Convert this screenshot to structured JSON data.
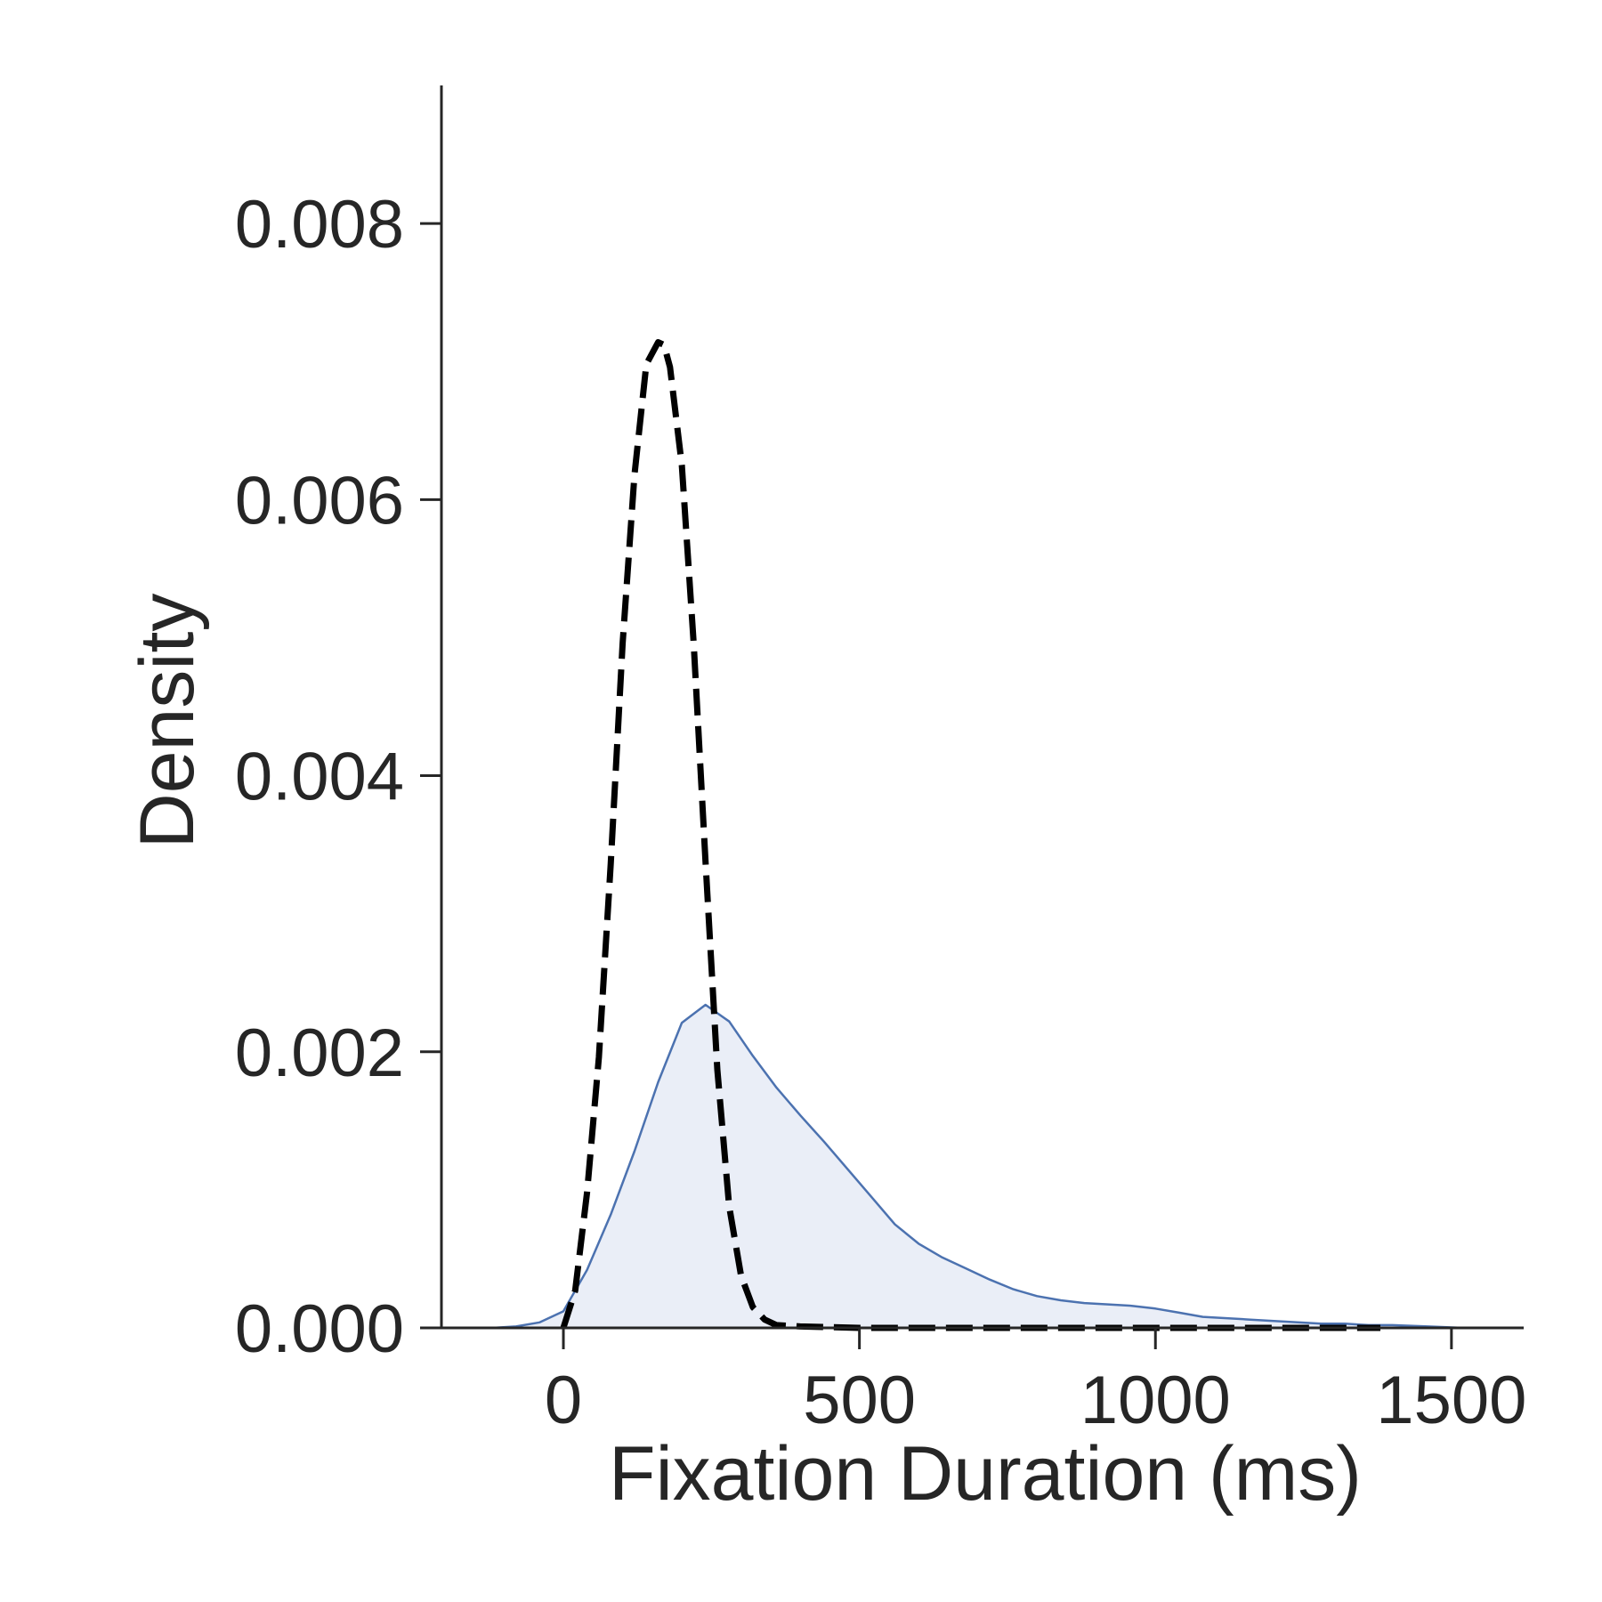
{
  "chart_data": {
    "type": "area",
    "title": "",
    "xlabel": "Fixation Duration (ms)",
    "ylabel": "Density",
    "xlim": [
      -206,
      1622
    ],
    "ylim": [
      0,
      0.009
    ],
    "xticks": [
      0,
      500,
      1000,
      1500
    ],
    "xtick_labels": [
      "0",
      "500",
      "1000",
      "1500"
    ],
    "yticks": [
      0.0,
      0.002,
      0.004,
      0.006,
      0.008
    ],
    "ytick_labels": [
      "0.000",
      "0.002",
      "0.004",
      "0.006",
      "0.008"
    ],
    "grid": false,
    "legend": "none",
    "series": [
      {
        "style": "filled-kde",
        "line_color": "#4c72b0",
        "fill_color": "#eaeef7",
        "x": [
          -120,
          -80,
          -40,
          0,
          40,
          80,
          120,
          160,
          200,
          240,
          280,
          320,
          360,
          400,
          440,
          480,
          520,
          560,
          600,
          640,
          680,
          720,
          760,
          800,
          840,
          880,
          920,
          960,
          1000,
          1040,
          1080,
          1120,
          1160,
          1200,
          1240,
          1280,
          1320,
          1360,
          1400,
          1460,
          1520
        ],
        "y": [
          0.0,
          1e-05,
          4e-05,
          0.00012,
          0.00042,
          0.00082,
          0.00128,
          0.00178,
          0.00221,
          0.00234,
          0.00222,
          0.00197,
          0.00174,
          0.00154,
          0.00135,
          0.00115,
          0.00095,
          0.00075,
          0.00061,
          0.00051,
          0.00043,
          0.00035,
          0.00028,
          0.00023,
          0.0002,
          0.00018,
          0.00017,
          0.00016,
          0.00014,
          0.00011,
          8e-05,
          7e-05,
          6e-05,
          5e-05,
          4e-05,
          3e-05,
          3e-05,
          2e-05,
          2e-05,
          1e-05,
          0.0
        ]
      },
      {
        "style": "dashed",
        "line_color": "#000000",
        "x": [
          0,
          20,
          40,
          60,
          80,
          100,
          120,
          140,
          160,
          170,
          180,
          200,
          220,
          240,
          260,
          280,
          300,
          320,
          340,
          360,
          400,
          500,
          600,
          800,
          1000,
          1200,
          1380
        ],
        "y": [
          0.0,
          0.00027,
          0.00098,
          0.00196,
          0.00336,
          0.00496,
          0.00618,
          0.00698,
          0.00714,
          0.00712,
          0.00696,
          0.00625,
          0.00496,
          0.00338,
          0.00187,
          0.00088,
          0.00038,
          0.00015,
          6e-05,
          2e-05,
          1e-05,
          0.0,
          0.0,
          0.0,
          0.0,
          0.0,
          0.0
        ]
      }
    ]
  },
  "colors": {
    "axis": "#262626",
    "text": "#262626"
  }
}
